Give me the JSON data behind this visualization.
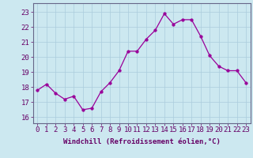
{
  "x": [
    0,
    1,
    2,
    3,
    4,
    5,
    6,
    7,
    8,
    9,
    10,
    11,
    12,
    13,
    14,
    15,
    16,
    17,
    18,
    19,
    20,
    21,
    22,
    23
  ],
  "y": [
    17.8,
    18.2,
    17.6,
    17.2,
    17.4,
    16.5,
    16.6,
    17.7,
    18.3,
    19.1,
    20.4,
    20.4,
    21.2,
    21.8,
    22.9,
    22.2,
    22.5,
    22.5,
    21.4,
    20.1,
    19.4,
    19.1,
    19.1,
    18.3
  ],
  "line_color": "#990099",
  "marker": "o",
  "marker_size": 2.5,
  "bg_color": "#cce8f0",
  "grid_color": "#aaccdd",
  "xlabel": "Windchill (Refroidissement éolien,°C)",
  "ylabel_ticks": [
    16,
    17,
    18,
    19,
    20,
    21,
    22,
    23
  ],
  "xlim": [
    -0.5,
    23.5
  ],
  "ylim": [
    15.6,
    23.6
  ],
  "label_fontsize": 6.5,
  "tick_fontsize": 6.5,
  "tick_color": "#660066",
  "spine_color": "#666688"
}
